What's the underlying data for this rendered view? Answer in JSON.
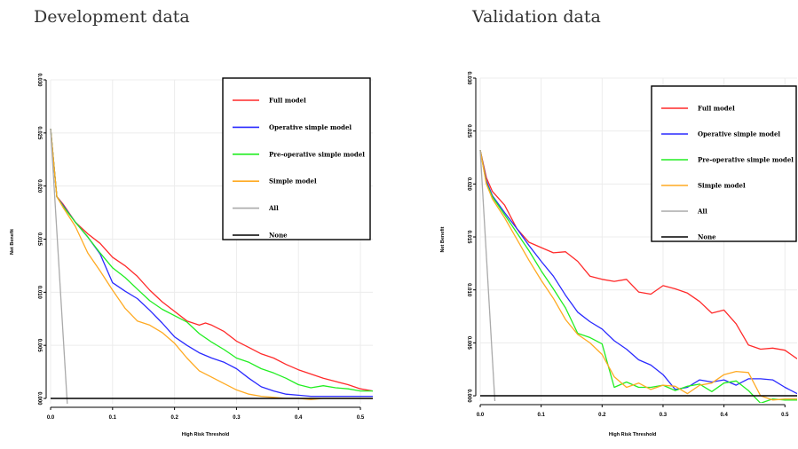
{
  "chart_data": [
    {
      "type": "line",
      "title": "Development data",
      "xlabel": "High Risk Threshold",
      "ylabel": "Net Benefit",
      "xlim": [
        0,
        0.52
      ],
      "ylim": [
        -0.0005,
        0.03
      ],
      "x_ticks": [
        "0.0",
        "0.1",
        "0.2",
        "0.3",
        "0.4",
        "0.5"
      ],
      "y_ticks": [
        "0.000",
        "0.005",
        "0.010",
        "0.015",
        "0.020",
        "0.025",
        "0.030"
      ],
      "legend_position": "top-right",
      "series": [
        {
          "name": "Full model",
          "color": "#ff2a2a",
          "x": [
            0.0,
            0.01,
            0.02,
            0.04,
            0.06,
            0.08,
            0.1,
            0.12,
            0.14,
            0.16,
            0.18,
            0.2,
            0.22,
            0.24,
            0.25,
            0.26,
            0.28,
            0.3,
            0.32,
            0.34,
            0.36,
            0.38,
            0.4,
            0.42,
            0.44,
            0.46,
            0.48,
            0.5,
            0.52
          ],
          "y": [
            0.0254,
            0.019,
            0.0183,
            0.0166,
            0.0155,
            0.0146,
            0.0133,
            0.0125,
            0.0115,
            0.0102,
            0.0091,
            0.0082,
            0.0073,
            0.0069,
            0.0071,
            0.0069,
            0.0063,
            0.0054,
            0.0048,
            0.0042,
            0.0038,
            0.0032,
            0.0027,
            0.0023,
            0.0019,
            0.0016,
            0.0013,
            0.0009,
            0.0007
          ]
        },
        {
          "name": "Operative simple model",
          "color": "#2a2aff",
          "x": [
            0.0,
            0.01,
            0.02,
            0.04,
            0.06,
            0.08,
            0.1,
            0.12,
            0.14,
            0.16,
            0.18,
            0.2,
            0.22,
            0.24,
            0.26,
            0.28,
            0.3,
            0.32,
            0.34,
            0.36,
            0.38,
            0.4,
            0.42,
            0.44,
            0.46,
            0.48,
            0.5,
            0.52
          ],
          "y": [
            0.0254,
            0.019,
            0.0182,
            0.0166,
            0.0152,
            0.0136,
            0.0109,
            0.0101,
            0.0094,
            0.0083,
            0.0071,
            0.0058,
            0.005,
            0.0043,
            0.0038,
            0.0034,
            0.0028,
            0.0019,
            0.0011,
            0.0007,
            0.0004,
            0.0003,
            0.0002,
            0.0002,
            0.0002,
            0.0002,
            0.0002,
            0.0002
          ]
        },
        {
          "name": "Pre-operative simple model",
          "color": "#22ee22",
          "x": [
            0.0,
            0.01,
            0.02,
            0.04,
            0.06,
            0.08,
            0.1,
            0.12,
            0.14,
            0.16,
            0.18,
            0.2,
            0.22,
            0.24,
            0.26,
            0.28,
            0.3,
            0.32,
            0.34,
            0.36,
            0.38,
            0.4,
            0.42,
            0.44,
            0.46,
            0.48,
            0.5,
            0.52
          ],
          "y": [
            0.0254,
            0.019,
            0.0181,
            0.0166,
            0.0152,
            0.0137,
            0.0123,
            0.0114,
            0.0103,
            0.0092,
            0.0084,
            0.0078,
            0.0072,
            0.0061,
            0.0053,
            0.0046,
            0.0038,
            0.0034,
            0.0028,
            0.0024,
            0.0019,
            0.0013,
            0.001,
            0.0012,
            0.001,
            0.0009,
            0.0007,
            0.0007
          ]
        },
        {
          "name": "Simple model",
          "color": "#ffaa22",
          "x": [
            0.0,
            0.01,
            0.02,
            0.04,
            0.06,
            0.08,
            0.1,
            0.12,
            0.14,
            0.16,
            0.18,
            0.2,
            0.22,
            0.24,
            0.26,
            0.28,
            0.3,
            0.32,
            0.34,
            0.36,
            0.38,
            0.4,
            0.42,
            0.44,
            0.46,
            0.48,
            0.5,
            0.52
          ],
          "y": [
            0.0254,
            0.019,
            0.018,
            0.0162,
            0.0137,
            0.012,
            0.0102,
            0.0085,
            0.0073,
            0.0069,
            0.0062,
            0.0052,
            0.0038,
            0.0026,
            0.002,
            0.0014,
            0.0008,
            0.0004,
            0.0002,
            0.0001,
            0.0,
            0.0,
            -0.0001,
            0.0,
            0.0,
            0.0,
            0.0,
            0.0
          ]
        },
        {
          "name": "All",
          "color": "#aaaaaa",
          "x": [
            0.0,
            0.027
          ],
          "y": [
            0.0254,
            -0.0005
          ]
        },
        {
          "name": "None",
          "color": "#000000",
          "x": [
            0.0,
            0.52
          ],
          "y": [
            0.0,
            0.0
          ]
        }
      ]
    },
    {
      "type": "line",
      "title": "Validation data",
      "xlabel": "High Risk Threshold",
      "ylabel": "Net Benefit",
      "xlim": [
        0,
        0.52
      ],
      "ylim": [
        -0.0005,
        0.03
      ],
      "x_ticks": [
        "0.0",
        "0.1",
        "0.2",
        "0.3",
        "0.4",
        "0.5"
      ],
      "y_ticks": [
        "0.000",
        "0.005",
        "0.010",
        "0.015",
        "0.020",
        "0.025",
        "0.030"
      ],
      "legend_position": "top-right",
      "series": [
        {
          "name": "Full model",
          "color": "#ff2a2a",
          "x": [
            0.0,
            0.01,
            0.02,
            0.04,
            0.06,
            0.08,
            0.1,
            0.12,
            0.14,
            0.16,
            0.18,
            0.2,
            0.22,
            0.24,
            0.26,
            0.28,
            0.3,
            0.32,
            0.34,
            0.36,
            0.38,
            0.4,
            0.42,
            0.44,
            0.46,
            0.48,
            0.5,
            0.52
          ],
          "y": [
            0.0232,
            0.0206,
            0.0193,
            0.018,
            0.0158,
            0.0145,
            0.014,
            0.0135,
            0.0136,
            0.0127,
            0.0113,
            0.011,
            0.0108,
            0.011,
            0.0098,
            0.0096,
            0.0104,
            0.0101,
            0.0097,
            0.0089,
            0.0078,
            0.0081,
            0.0068,
            0.0048,
            0.0044,
            0.0045,
            0.0043,
            0.0035
          ]
        },
        {
          "name": "Operative simple model",
          "color": "#2a2aff",
          "x": [
            0.0,
            0.01,
            0.02,
            0.04,
            0.06,
            0.08,
            0.1,
            0.12,
            0.14,
            0.16,
            0.18,
            0.2,
            0.22,
            0.24,
            0.26,
            0.28,
            0.3,
            0.32,
            0.34,
            0.36,
            0.38,
            0.4,
            0.42,
            0.44,
            0.46,
            0.48,
            0.5,
            0.52
          ],
          "y": [
            0.0232,
            0.0203,
            0.0189,
            0.0173,
            0.0158,
            0.0142,
            0.0127,
            0.0113,
            0.0095,
            0.0079,
            0.007,
            0.0063,
            0.0052,
            0.0044,
            0.0034,
            0.0029,
            0.002,
            0.0006,
            0.0008,
            0.0015,
            0.0013,
            0.0015,
            0.001,
            0.0016,
            0.0016,
            0.0015,
            0.0008,
            0.0002
          ]
        },
        {
          "name": "Pre-operative simple model",
          "color": "#22ee22",
          "x": [
            0.0,
            0.01,
            0.02,
            0.04,
            0.06,
            0.08,
            0.1,
            0.12,
            0.14,
            0.16,
            0.18,
            0.2,
            0.22,
            0.24,
            0.26,
            0.28,
            0.3,
            0.32,
            0.34,
            0.36,
            0.38,
            0.4,
            0.42,
            0.44,
            0.46,
            0.48,
            0.5,
            0.52
          ],
          "y": [
            0.0232,
            0.0201,
            0.0188,
            0.0171,
            0.0154,
            0.0137,
            0.0118,
            0.0101,
            0.0083,
            0.0059,
            0.0055,
            0.0049,
            0.0008,
            0.0013,
            0.0008,
            0.0008,
            0.001,
            0.0005,
            0.0009,
            0.0011,
            0.0004,
            0.0012,
            0.0014,
            0.0005,
            -0.0007,
            -0.0003,
            -0.0004,
            -0.0004
          ]
        },
        {
          "name": "Simple model",
          "color": "#ffaa22",
          "x": [
            0.0,
            0.01,
            0.02,
            0.04,
            0.06,
            0.08,
            0.1,
            0.12,
            0.14,
            0.16,
            0.18,
            0.2,
            0.22,
            0.24,
            0.26,
            0.28,
            0.3,
            0.32,
            0.34,
            0.36,
            0.38,
            0.4,
            0.42,
            0.44,
            0.46,
            0.48,
            0.5,
            0.52
          ],
          "y": [
            0.0232,
            0.02,
            0.0186,
            0.0168,
            0.0148,
            0.0128,
            0.0109,
            0.0092,
            0.0072,
            0.0058,
            0.005,
            0.0039,
            0.0018,
            0.0008,
            0.0012,
            0.0006,
            0.001,
            0.0009,
            0.0002,
            0.001,
            0.0012,
            0.002,
            0.0023,
            0.0022,
            0.0,
            -0.0004,
            -0.0003,
            -0.0003
          ]
        },
        {
          "name": "All",
          "color": "#aaaaaa",
          "x": [
            0.0,
            0.024
          ],
          "y": [
            0.0232,
            -0.0005
          ]
        },
        {
          "name": "None",
          "color": "#000000",
          "x": [
            0.0,
            0.52
          ],
          "y": [
            0.0,
            0.0
          ]
        }
      ]
    }
  ]
}
